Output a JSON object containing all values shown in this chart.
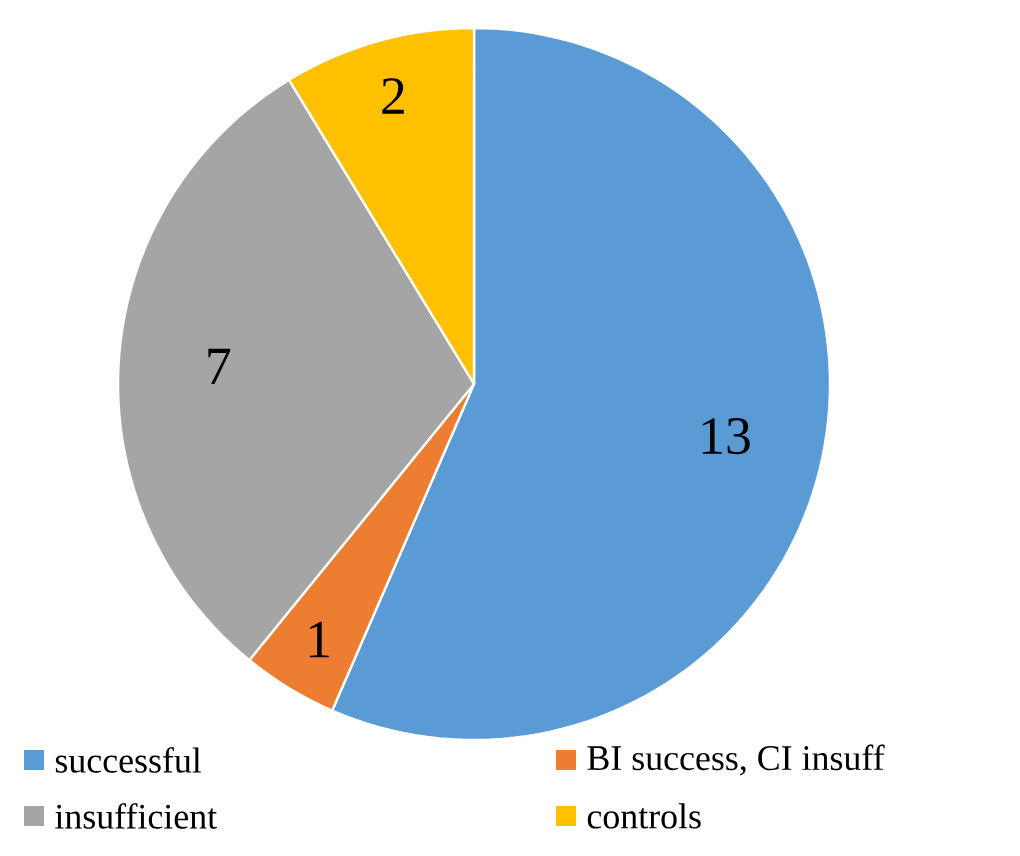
{
  "chart_data": {
    "type": "pie",
    "categories": [
      "successful",
      "BI success, CI insuff",
      "insufficient",
      "controls"
    ],
    "values": [
      13,
      1,
      7,
      2
    ],
    "colors": [
      "#5b9bd5",
      "#ed7d31",
      "#a5a5a5",
      "#ffc000"
    ],
    "data_labels": true,
    "legend": "bottom"
  }
}
